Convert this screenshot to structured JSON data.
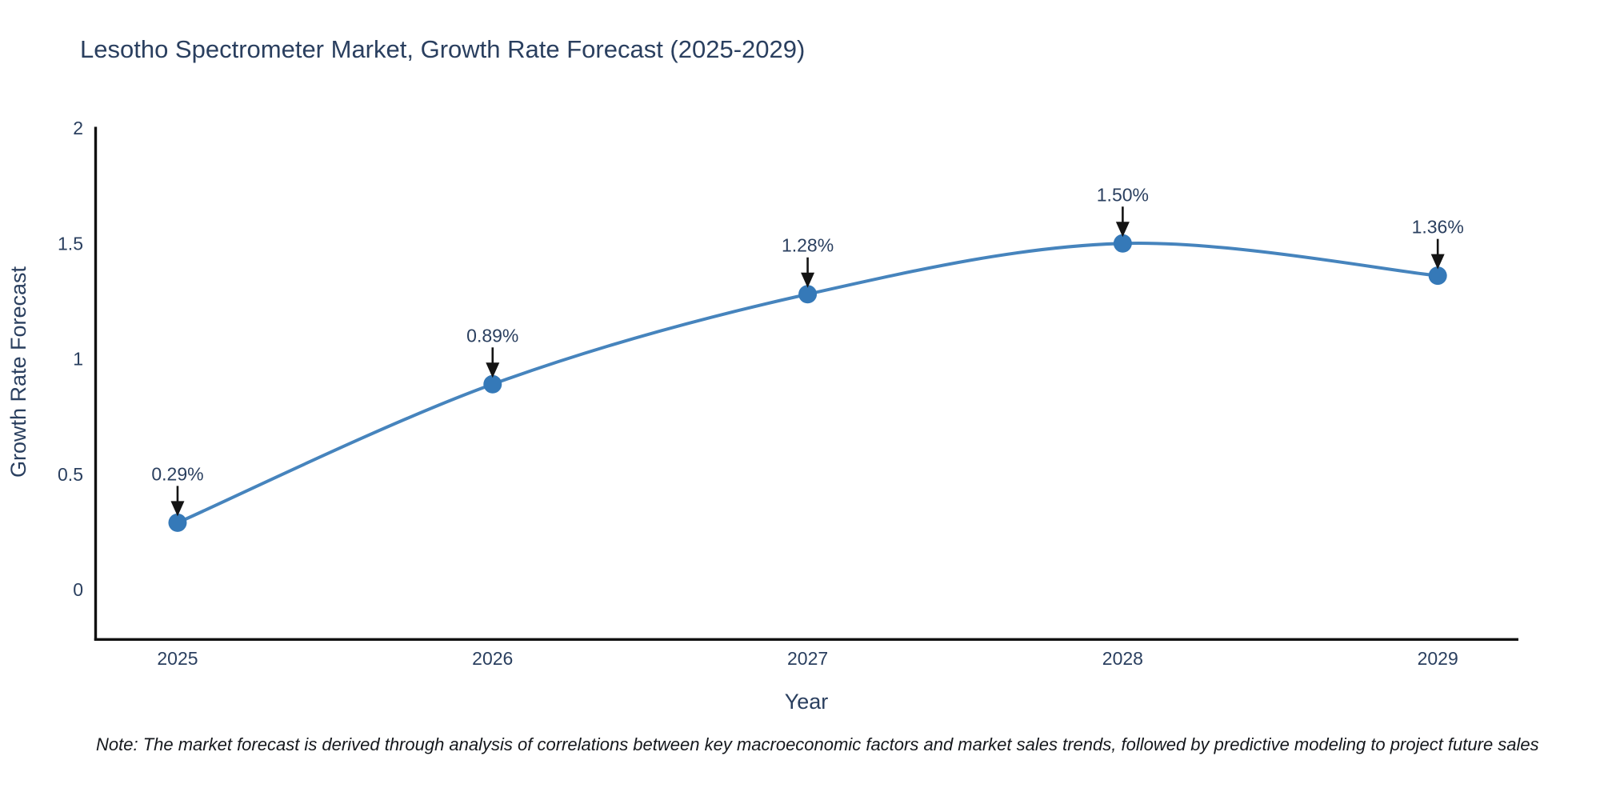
{
  "chart_data": {
    "type": "line",
    "title": "Lesotho Spectrometer Market, Growth Rate Forecast (2025-2029)",
    "xlabel": "Year",
    "ylabel": "Growth Rate Forecast",
    "x": [
      2025,
      2026,
      2027,
      2028,
      2029
    ],
    "series": [
      {
        "name": "Growth Rate Forecast",
        "values": [
          0.29,
          0.89,
          1.28,
          1.5,
          1.36
        ],
        "point_labels": [
          "0.29%",
          "0.89%",
          "1.28%",
          "1.50%",
          "1.36%"
        ]
      }
    ],
    "xtick_labels": [
      "2025",
      "2026",
      "2027",
      "2028",
      "2029"
    ],
    "yticks": [
      0,
      0.5,
      1,
      1.5,
      2
    ],
    "ytick_labels": [
      "0",
      "0.5",
      "1",
      "1.5",
      "2"
    ],
    "xlim": [
      2024.736,
      2029.256
    ],
    "ylim": [
      -0.2216,
      2.0
    ],
    "grid": false,
    "legend": "none",
    "line_shape": "spline",
    "annotations": "value labels with downward arrows above each point"
  },
  "colors": {
    "title_text": "#2a3f5f",
    "tick_text": "#2a3f5f",
    "axis_line": "#111111",
    "series_line": "#4684bd",
    "marker_fill": "#3579b8",
    "arrow": "#141414",
    "annotation_text": "#2a3f5f"
  },
  "note": "Note: The market forecast is derived through analysis of correlations between key macroeconomic factors and market sales trends, followed by predictive modeling to project future sales"
}
